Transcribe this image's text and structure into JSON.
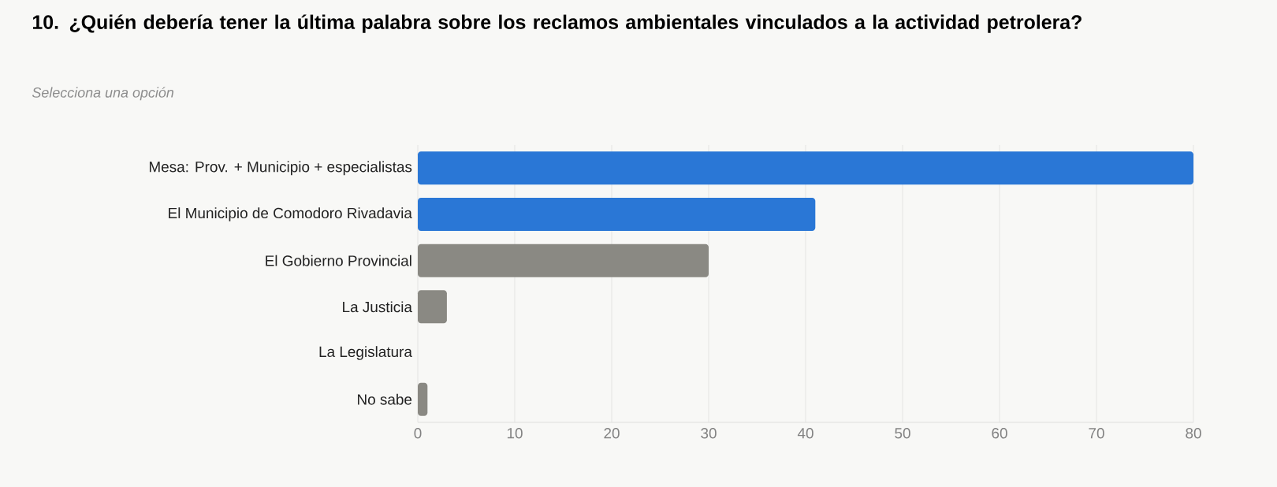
{
  "chart_data": {
    "type": "bar",
    "orientation": "horizontal",
    "title": "10. ¿Quién debería tener la última palabra sobre los reclamos ambientales vinculados a la actividad petrolera?",
    "subtitle": "Selecciona una opción",
    "categories": [
      "Mesa: Prov. + Municipio + especialistas",
      "El Municipio de Comodoro Rivadavia",
      "El Gobierno Provincial",
      "La Justicia",
      "La Legislatura",
      "No sabe"
    ],
    "values": [
      80,
      41,
      30,
      3,
      0,
      1
    ],
    "colors": [
      "#2a77d6",
      "#2a77d6",
      "#8a8983",
      "#8a8983",
      "#8a8983",
      "#8a8983"
    ],
    "xlim": [
      0,
      80
    ],
    "xticks": [
      0,
      10,
      20,
      30,
      40,
      50,
      60,
      70,
      80
    ],
    "grid": "x"
  }
}
